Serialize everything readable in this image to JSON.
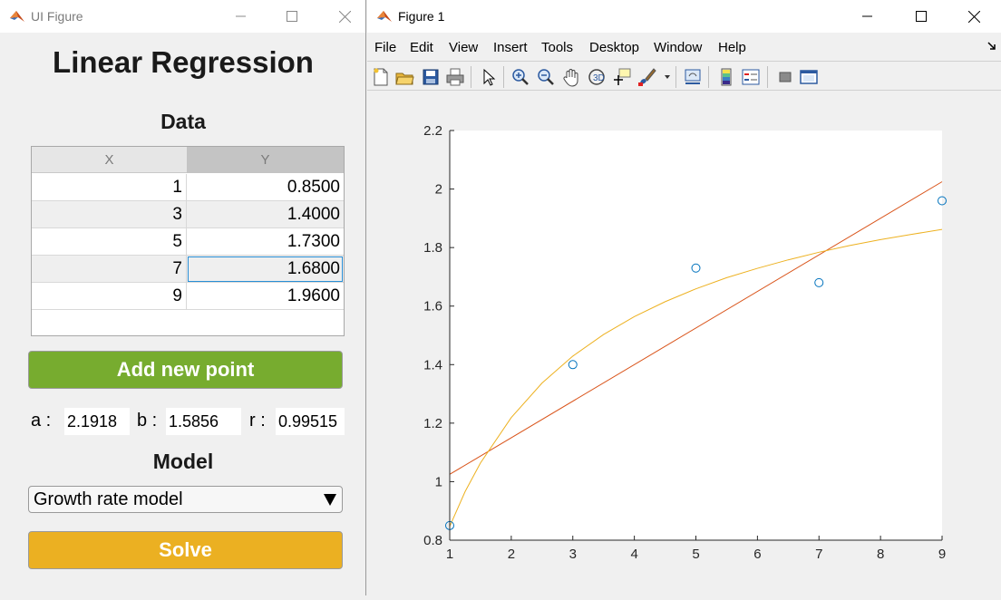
{
  "ui_figure": {
    "title": "UI Figure",
    "heading": "Linear Regression",
    "data_heading": "Data",
    "table": {
      "columns": [
        "X",
        "Y"
      ],
      "rows": [
        {
          "x": "1",
          "y": "0.8500"
        },
        {
          "x": "3",
          "y": "1.4000"
        },
        {
          "x": "5",
          "y": "1.7300"
        },
        {
          "x": "7",
          "y": "1.6800"
        },
        {
          "x": "9",
          "y": "1.9600"
        }
      ],
      "selected_row": 3
    },
    "add_button": "Add new point",
    "params": {
      "a_label": "a :",
      "a_value": "2.1918",
      "b_label": "b :",
      "b_value": "1.5856",
      "r_label": "r :",
      "r_value": "0.99515"
    },
    "model_heading": "Model",
    "model_select": "Growth rate model",
    "solve_button": "Solve",
    "colors": {
      "add": "#77ac2f",
      "solve": "#ebb022"
    }
  },
  "figure": {
    "title": "Figure 1",
    "menus": [
      "File",
      "Edit",
      "View",
      "Insert",
      "Tools",
      "Desktop",
      "Window",
      "Help"
    ],
    "toolbar_icons": [
      "new-figure-icon",
      "open-file-icon",
      "save-icon",
      "print-icon",
      "pointer-icon",
      "zoom-in-icon",
      "zoom-out-icon",
      "pan-icon",
      "rotate-icon",
      "data-cursor-icon",
      "brush-icon",
      "link-plot-icon",
      "colorbar-icon",
      "legend-icon",
      "hide-plot-tools-icon",
      "show-plot-tools-icon"
    ]
  },
  "chart_data": {
    "type": "scatter",
    "xlim": [
      1,
      9
    ],
    "ylim": [
      0.8,
      2.2
    ],
    "xticks": [
      "1",
      "2",
      "3",
      "4",
      "5",
      "6",
      "7",
      "8",
      "9"
    ],
    "yticks": [
      "0.8",
      "1",
      "1.2",
      "1.4",
      "1.6",
      "1.8",
      "2",
      "2.2"
    ],
    "points": {
      "x": [
        1,
        3,
        5,
        7,
        9
      ],
      "y": [
        0.85,
        1.4,
        1.73,
        1.68,
        1.96
      ],
      "color": "#0072bd"
    },
    "linear_fit": {
      "x": [
        1,
        9
      ],
      "y": [
        1.025,
        2.025
      ],
      "color": "#d95319"
    },
    "growth_fit": {
      "color": "#edb120",
      "x": [
        1,
        1.25,
        1.5,
        2,
        2.5,
        3,
        3.5,
        4,
        4.5,
        5,
        5.5,
        6,
        6.5,
        7,
        7.5,
        8,
        8.5,
        9
      ],
      "y": [
        0.847,
        0.966,
        1.064,
        1.219,
        1.337,
        1.429,
        1.503,
        1.564,
        1.615,
        1.659,
        1.697,
        1.729,
        1.758,
        1.784,
        1.807,
        1.827,
        1.845,
        1.862
      ]
    },
    "grid": false
  }
}
